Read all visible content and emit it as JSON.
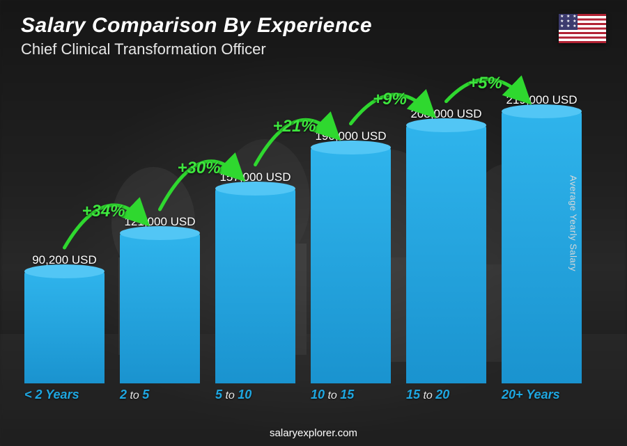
{
  "header": {
    "title": "Salary Comparison By Experience",
    "subtitle": "Chief Clinical Transformation Officer",
    "flag_country": "United States"
  },
  "axis": {
    "right_label": "Average Yearly Salary"
  },
  "footer": {
    "site": "salaryexplorer.com"
  },
  "chart": {
    "type": "bar",
    "bar_fill_top": "#2fb4ec",
    "bar_fill_bottom": "#1a93cf",
    "bar_ellipse_top": "#52c6f5",
    "value_color": "#ffffff",
    "value_fontsize": 17,
    "category_color": "#1ea7e1",
    "category_fontsize": 18,
    "arc_color": "#2fd82f",
    "arc_label_color": "#3ee63e",
    "arc_label_fontsize": 24,
    "background_color": "#1a1a1a",
    "bar_width_pct": 92,
    "ylim": [
      0,
      219000
    ],
    "bars": [
      {
        "category_pre": "< 2",
        "category_mid": "",
        "category_post": " Years",
        "value": 90200,
        "value_label": "90,200 USD"
      },
      {
        "category_pre": "2",
        "category_mid": " to ",
        "category_post": "5",
        "value": 121000,
        "value_label": "121,000 USD"
      },
      {
        "category_pre": "5",
        "category_mid": " to ",
        "category_post": "10",
        "value": 157000,
        "value_label": "157,000 USD"
      },
      {
        "category_pre": "10",
        "category_mid": " to ",
        "category_post": "15",
        "value": 190000,
        "value_label": "190,000 USD"
      },
      {
        "category_pre": "15",
        "category_mid": " to ",
        "category_post": "20",
        "value": 208000,
        "value_label": "208,000 USD"
      },
      {
        "category_pre": "20+",
        "category_mid": "",
        "category_post": " Years",
        "value": 219000,
        "value_label": "219,000 USD"
      }
    ],
    "arcs": [
      {
        "from": 0,
        "to": 1,
        "label": "+34%"
      },
      {
        "from": 1,
        "to": 2,
        "label": "+30%"
      },
      {
        "from": 2,
        "to": 3,
        "label": "+21%"
      },
      {
        "from": 3,
        "to": 4,
        "label": "+9%"
      },
      {
        "from": 4,
        "to": 5,
        "label": "+5%"
      }
    ]
  }
}
